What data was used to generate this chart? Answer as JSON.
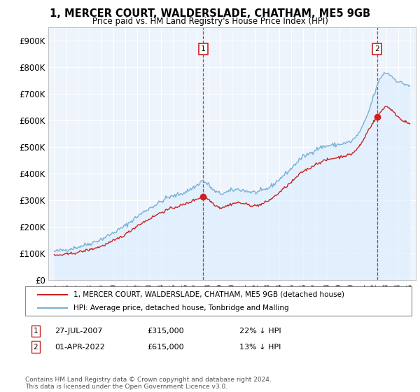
{
  "title": "1, MERCER COURT, WALDERSLADE, CHATHAM, ME5 9GB",
  "subtitle": "Price paid vs. HM Land Registry's House Price Index (HPI)",
  "ylabel_ticks": [
    "£0",
    "£100K",
    "£200K",
    "£300K",
    "£400K",
    "£500K",
    "£600K",
    "£700K",
    "£800K",
    "£900K"
  ],
  "ytick_values": [
    0,
    100000,
    200000,
    300000,
    400000,
    500000,
    600000,
    700000,
    800000,
    900000
  ],
  "ylim": [
    0,
    950000
  ],
  "xlim_start": 1994.5,
  "xlim_end": 2025.5,
  "hpi_color": "#7ab0d4",
  "hpi_fill_color": "#ddeeff",
  "price_color": "#cc2222",
  "dashed_color": "#cc2222",
  "point1_x": 2007.57,
  "point1_y": 315000,
  "point1_label": "1",
  "point2_x": 2022.25,
  "point2_y": 615000,
  "point2_label": "2",
  "legend_line1": "1, MERCER COURT, WALDERSLADE, CHATHAM, ME5 9GB (detached house)",
  "legend_line2": "HPI: Average price, detached house, Tonbridge and Malling",
  "annotation1_date": "27-JUL-2007",
  "annotation1_price": "£315,000",
  "annotation1_hpi": "22% ↓ HPI",
  "annotation2_date": "01-APR-2022",
  "annotation2_price": "£615,000",
  "annotation2_hpi": "13% ↓ HPI",
  "footnote": "Contains HM Land Registry data © Crown copyright and database right 2024.\nThis data is licensed under the Open Government Licence v3.0.",
  "bg_color": "#ffffff",
  "plot_bg_color": "#eef4fb",
  "grid_color": "#ffffff",
  "xticks": [
    1995,
    1996,
    1997,
    1998,
    1999,
    2000,
    2001,
    2002,
    2003,
    2004,
    2005,
    2006,
    2007,
    2008,
    2009,
    2010,
    2011,
    2012,
    2013,
    2014,
    2015,
    2016,
    2017,
    2018,
    2019,
    2020,
    2021,
    2022,
    2023,
    2024,
    2025
  ]
}
